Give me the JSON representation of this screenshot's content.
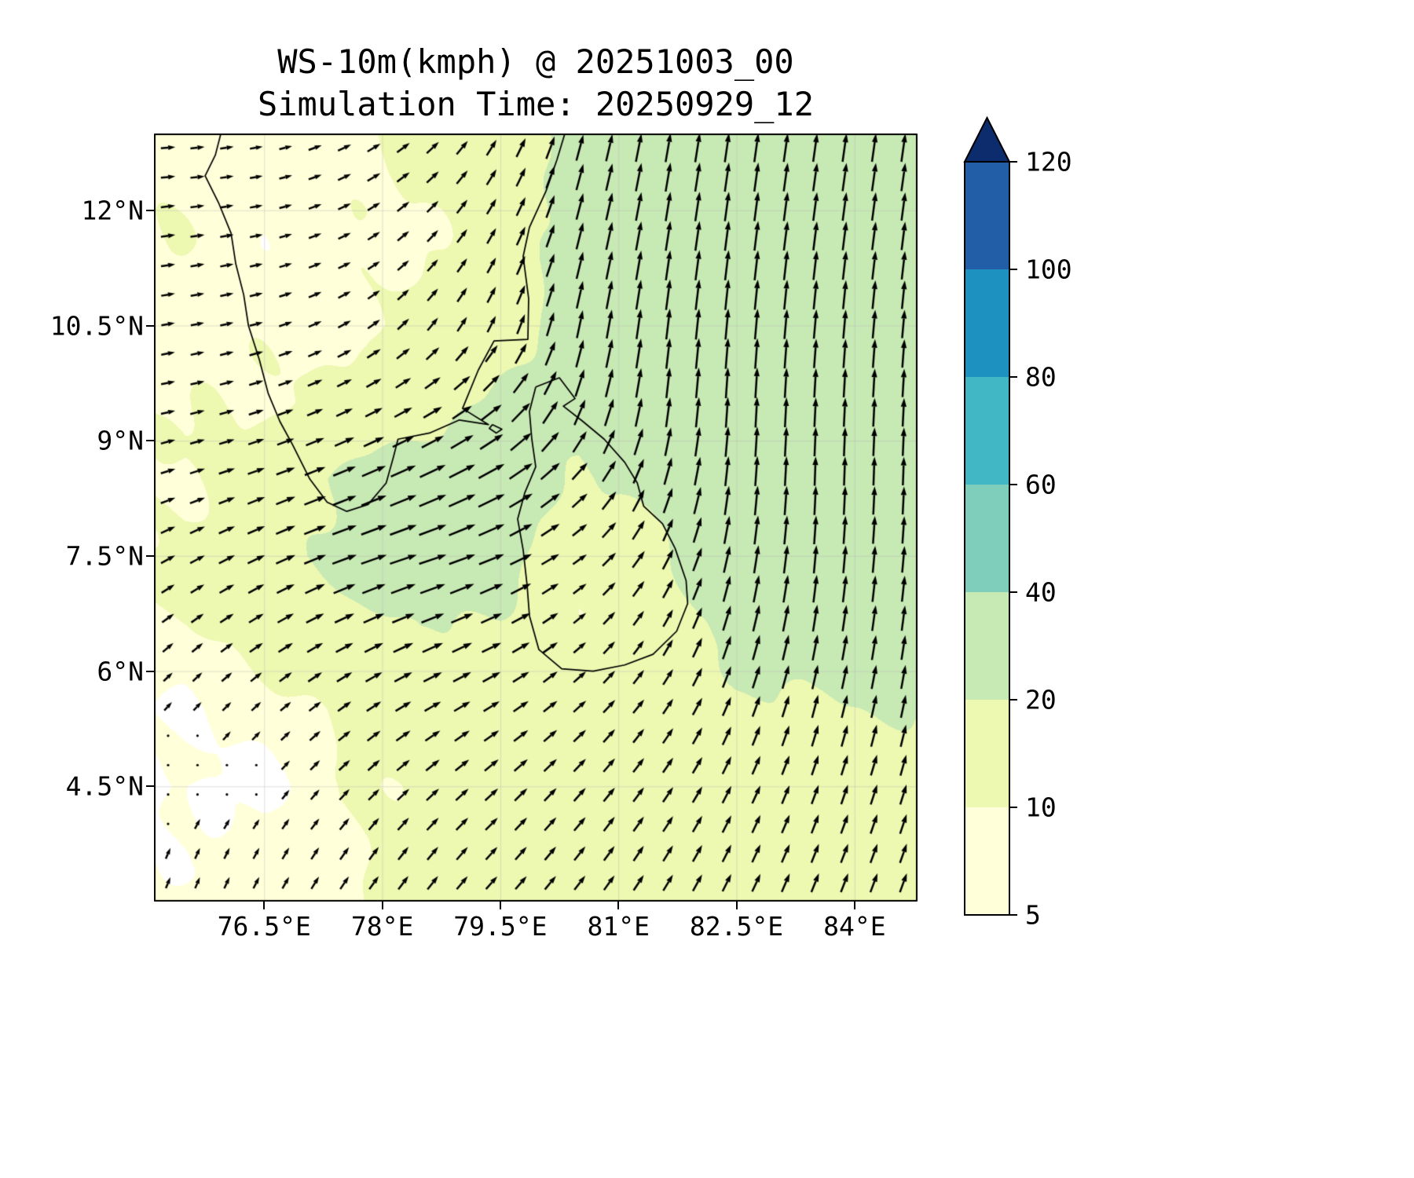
{
  "figure": {
    "title": "WS-10m(kmph) @ 20251003_00",
    "subtitle": "Simulation Time: 20250929_12"
  },
  "chart_data": {
    "type": "heatmap",
    "subtype": "wind-vector-filled-contour-map",
    "title": "WS-10m(kmph) @ 20251003_00",
    "subtitle": "Simulation Time: 20250929_12",
    "units": "kmph",
    "xlabel": "",
    "ylabel": "",
    "grid": true,
    "legend_position": "right-colorbar",
    "lon_range": [
      75.1,
      84.8
    ],
    "lat_range": [
      3.0,
      13.0
    ],
    "x_ticks": {
      "values": [
        76.5,
        78,
        79.5,
        81,
        82.5,
        84
      ],
      "labels": [
        "76.5°E",
        "78°E",
        "79.5°E",
        "81°E",
        "82.5°E",
        "84°E"
      ]
    },
    "y_ticks": {
      "values": [
        12,
        10.5,
        9,
        7.5,
        6,
        4.5
      ],
      "labels": [
        "12°N",
        "10.5°N",
        "9°N",
        "7.5°N",
        "6°N",
        "4.5°N"
      ]
    },
    "colorbar": {
      "levels": [
        5,
        10,
        20,
        40,
        60,
        80,
        100,
        120
      ],
      "tick_labels": [
        "5",
        "10",
        "20",
        "40",
        "60",
        "80",
        "100",
        "120"
      ],
      "band_colors": [
        "#ffffd9",
        "#edf8b1",
        "#c7e9b4",
        "#7fcdbb",
        "#41b6c4",
        "#1d91c0",
        "#225ea8"
      ],
      "below_color": "#ffffff",
      "above_color": "#0c2c6e",
      "extend": "max"
    },
    "wind_grid": {
      "lons": [
        75.5,
        76.5,
        77.5,
        78.5,
        79.5,
        80.5,
        81.5,
        82.5,
        83.5,
        84.5
      ],
      "lats": [
        12.5,
        11.5,
        10.5,
        9.5,
        8.5,
        7.5,
        6.5,
        5.5,
        4.5,
        3.5
      ],
      "speed_kmph": [
        [
          9,
          7,
          9,
          11,
          14,
          24,
          27,
          27,
          26,
          26
        ],
        [
          9,
          7,
          8,
          10,
          13,
          25,
          28,
          28,
          27,
          26
        ],
        [
          8,
          8,
          9,
          11,
          14,
          26,
          29,
          29,
          27,
          26
        ],
        [
          9,
          10,
          12,
          15,
          22,
          26,
          28,
          29,
          27,
          26
        ],
        [
          10,
          14,
          22,
          27,
          28,
          18,
          25,
          28,
          27,
          26
        ],
        [
          11,
          15,
          23,
          27,
          24,
          12,
          18,
          26,
          26,
          24
        ],
        [
          9,
          12,
          16,
          20,
          18,
          11,
          13,
          24,
          24,
          22
        ],
        [
          5,
          7,
          11,
          14,
          14,
          12,
          13,
          17,
          20,
          20
        ],
        [
          4,
          4,
          9,
          12,
          13,
          13,
          13,
          15,
          16,
          17
        ],
        [
          6,
          7,
          10,
          12,
          12,
          13,
          14,
          15,
          16,
          16
        ]
      ],
      "direction_deg_ccw_from_east": [
        [
          5,
          10,
          25,
          40,
          60,
          75,
          80,
          82,
          82,
          82
        ],
        [
          8,
          12,
          25,
          45,
          62,
          76,
          81,
          83,
          83,
          83
        ],
        [
          10,
          15,
          28,
          48,
          65,
          78,
          83,
          85,
          85,
          85
        ],
        [
          12,
          18,
          25,
          30,
          40,
          70,
          83,
          87,
          87,
          87
        ],
        [
          18,
          20,
          22,
          24,
          28,
          45,
          72,
          85,
          88,
          88
        ],
        [
          28,
          25,
          20,
          18,
          22,
          35,
          60,
          80,
          85,
          85
        ],
        [
          38,
          32,
          26,
          22,
          25,
          40,
          58,
          74,
          80,
          82
        ],
        [
          48,
          42,
          36,
          30,
          32,
          42,
          54,
          68,
          75,
          78
        ],
        [
          58,
          52,
          46,
          42,
          42,
          48,
          54,
          64,
          70,
          73
        ],
        [
          68,
          62,
          56,
          52,
          48,
          52,
          58,
          64,
          68,
          70
        ]
      ]
    },
    "coastlines": {
      "india": [
        [
          75.95,
          13.0
        ],
        [
          75.88,
          12.72
        ],
        [
          75.75,
          12.45
        ],
        [
          75.92,
          12.1
        ],
        [
          76.08,
          11.7
        ],
        [
          76.14,
          11.3
        ],
        [
          76.24,
          10.9
        ],
        [
          76.3,
          10.5
        ],
        [
          76.44,
          10.05
        ],
        [
          76.55,
          9.62
        ],
        [
          76.7,
          9.25
        ],
        [
          76.86,
          8.95
        ],
        [
          77.08,
          8.5
        ],
        [
          77.3,
          8.2
        ],
        [
          77.55,
          8.08
        ],
        [
          77.82,
          8.17
        ],
        [
          78.05,
          8.45
        ],
        [
          78.14,
          8.78
        ],
        [
          78.2,
          9.02
        ],
        [
          78.6,
          9.1
        ],
        [
          78.98,
          9.27
        ],
        [
          79.35,
          9.21
        ],
        [
          79.02,
          9.42
        ],
        [
          79.22,
          9.92
        ],
        [
          79.42,
          10.3
        ],
        [
          79.85,
          10.32
        ],
        [
          79.86,
          10.85
        ],
        [
          79.79,
          11.4
        ],
        [
          79.87,
          11.78
        ],
        [
          80.08,
          12.25
        ],
        [
          80.22,
          12.66
        ],
        [
          80.32,
          13.0
        ]
      ],
      "sri_lanka": [
        [
          79.95,
          9.7
        ],
        [
          80.25,
          9.82
        ],
        [
          80.45,
          9.55
        ],
        [
          80.3,
          9.45
        ],
        [
          80.55,
          9.25
        ],
        [
          80.82,
          9.02
        ],
        [
          81.08,
          8.72
        ],
        [
          81.24,
          8.45
        ],
        [
          81.32,
          8.15
        ],
        [
          81.56,
          7.92
        ],
        [
          81.72,
          7.6
        ],
        [
          81.86,
          7.18
        ],
        [
          81.88,
          6.88
        ],
        [
          81.74,
          6.52
        ],
        [
          81.44,
          6.22
        ],
        [
          81.08,
          6.08
        ],
        [
          80.68,
          6.0
        ],
        [
          80.28,
          6.03
        ],
        [
          79.99,
          6.28
        ],
        [
          79.87,
          6.72
        ],
        [
          79.84,
          7.12
        ],
        [
          79.79,
          7.58
        ],
        [
          79.72,
          7.98
        ],
        [
          79.81,
          8.32
        ],
        [
          79.95,
          8.66
        ],
        [
          79.9,
          9.02
        ],
        [
          79.87,
          9.38
        ],
        [
          79.95,
          9.7
        ]
      ],
      "islet": [
        [
          79.4,
          9.21
        ],
        [
          79.52,
          9.15
        ],
        [
          79.45,
          9.1
        ],
        [
          79.36,
          9.16
        ],
        [
          79.4,
          9.21
        ]
      ]
    }
  }
}
